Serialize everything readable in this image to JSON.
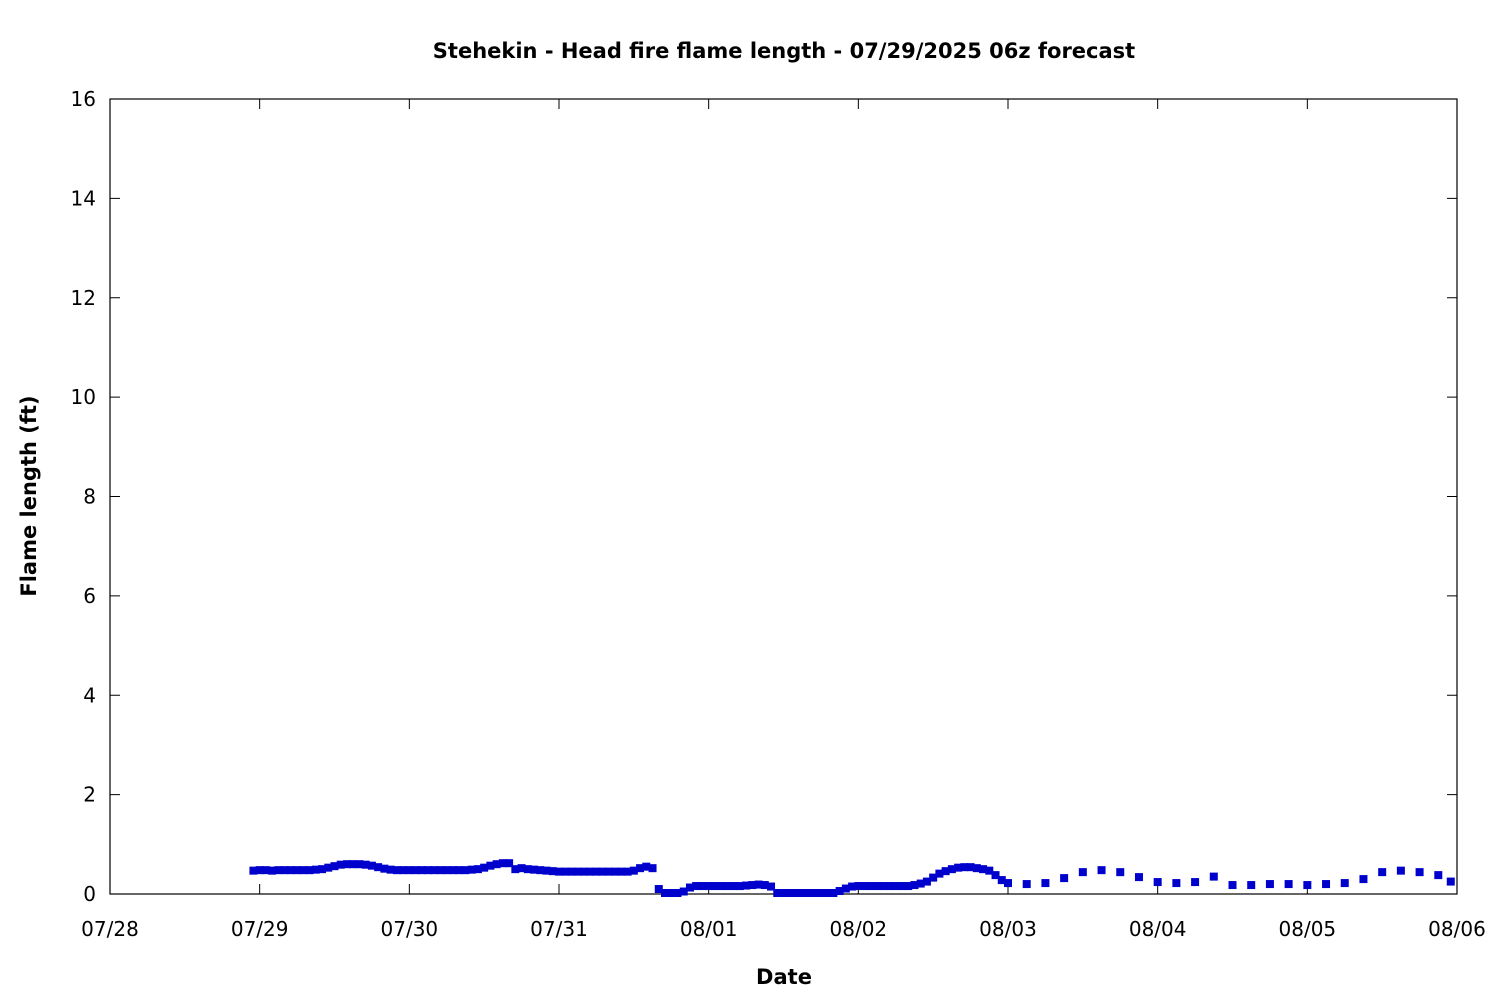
{
  "chart_data": {
    "type": "scatter",
    "title": "Stehekin - Head fire flame length - 07/29/2025 06z forecast",
    "xlabel": "Date",
    "ylabel": "Flame length (ft)",
    "ylim": [
      0,
      16
    ],
    "yticks": [
      "0",
      "2",
      "4",
      "6",
      "8",
      "10",
      "12",
      "14",
      "16"
    ],
    "xlim": [
      "07/28 00z",
      "08/06 00z"
    ],
    "xticks": [
      "07/28",
      "07/29",
      "07/30",
      "07/31",
      "08/01",
      "08/02",
      "08/03",
      "08/04",
      "08/05",
      "08/06"
    ],
    "grid": false,
    "legend": false,
    "marker": "square",
    "color": "#0000cc",
    "series": [
      {
        "x": [
          "07/28 23z",
          "07/29 00z",
          "07/29 01z",
          "07/29 02z",
          "07/29 03z",
          "07/29 04z",
          "07/29 05z",
          "07/29 06z",
          "07/29 07z",
          "07/29 08z",
          "07/29 09z",
          "07/29 10z",
          "07/29 11z",
          "07/29 12z",
          "07/29 13z",
          "07/29 14z",
          "07/29 15z",
          "07/29 16z",
          "07/29 17z",
          "07/29 18z",
          "07/29 19z",
          "07/29 20z",
          "07/29 21z",
          "07/29 22z",
          "07/29 23z",
          "07/30 00z",
          "07/30 01z",
          "07/30 02z",
          "07/30 03z",
          "07/30 04z",
          "07/30 05z",
          "07/30 06z",
          "07/30 07z",
          "07/30 08z",
          "07/30 09z",
          "07/30 10z",
          "07/30 11z",
          "07/30 12z",
          "07/30 13z",
          "07/30 14z",
          "07/30 15z",
          "07/30 16z",
          "07/30 17z",
          "07/30 18z",
          "07/30 19z",
          "07/30 20z",
          "07/30 21z",
          "07/30 22z",
          "07/30 23z",
          "07/31 00z",
          "07/31 01z",
          "07/31 02z",
          "07/31 03z",
          "07/31 04z",
          "07/31 05z",
          "07/31 06z",
          "07/31 07z",
          "07/31 08z",
          "07/31 09z",
          "07/31 10z",
          "07/31 11z",
          "07/31 12z",
          "07/31 13z",
          "07/31 14z",
          "07/31 15z",
          "07/31 16z",
          "07/31 17z",
          "07/31 18z",
          "07/31 19z",
          "07/31 20z",
          "07/31 21z",
          "07/31 22z",
          "07/31 23z",
          "08/01 00z",
          "08/01 01z",
          "08/01 02z",
          "08/01 03z",
          "08/01 04z",
          "08/01 05z",
          "08/01 06z",
          "08/01 07z",
          "08/01 08z",
          "08/01 09z",
          "08/01 10z",
          "08/01 11z",
          "08/01 12z",
          "08/01 13z",
          "08/01 14z",
          "08/01 15z",
          "08/01 16z",
          "08/01 17z",
          "08/01 18z",
          "08/01 19z",
          "08/01 20z",
          "08/01 21z",
          "08/01 22z",
          "08/01 23z",
          "08/02 00z",
          "08/02 01z",
          "08/02 02z",
          "08/02 03z",
          "08/02 04z",
          "08/02 05z",
          "08/02 06z",
          "08/02 07z",
          "08/02 08z",
          "08/02 09z",
          "08/02 10z",
          "08/02 11z",
          "08/02 12z",
          "08/02 13z",
          "08/02 14z",
          "08/02 15z",
          "08/02 16z",
          "08/02 17z",
          "08/02 18z",
          "08/02 19z",
          "08/02 20z",
          "08/02 21z",
          "08/02 22z",
          "08/02 23z",
          "08/03 00z",
          "08/03 03z",
          "08/03 06z",
          "08/03 09z",
          "08/03 12z",
          "08/03 15z",
          "08/03 18z",
          "08/03 21z",
          "08/04 00z",
          "08/04 03z",
          "08/04 06z",
          "08/04 09z",
          "08/04 12z",
          "08/04 15z",
          "08/04 18z",
          "08/04 21z",
          "08/05 00z",
          "08/05 03z",
          "08/05 06z",
          "08/05 09z",
          "08/05 12z",
          "08/05 15z",
          "08/05 18z",
          "08/05 21z",
          "08/05 23z"
        ],
        "y": [
          0.47,
          0.48,
          0.48,
          0.47,
          0.48,
          0.48,
          0.48,
          0.48,
          0.48,
          0.48,
          0.49,
          0.5,
          0.53,
          0.56,
          0.59,
          0.6,
          0.6,
          0.6,
          0.59,
          0.57,
          0.54,
          0.51,
          0.49,
          0.48,
          0.48,
          0.48,
          0.48,
          0.48,
          0.48,
          0.48,
          0.48,
          0.48,
          0.48,
          0.48,
          0.48,
          0.49,
          0.5,
          0.53,
          0.57,
          0.6,
          0.62,
          0.62,
          0.5,
          0.52,
          0.5,
          0.49,
          0.48,
          0.47,
          0.46,
          0.45,
          0.45,
          0.45,
          0.45,
          0.45,
          0.45,
          0.45,
          0.45,
          0.45,
          0.45,
          0.45,
          0.45,
          0.47,
          0.52,
          0.55,
          0.52,
          0.1,
          0.02,
          0.02,
          0.02,
          0.05,
          0.13,
          0.16,
          0.16,
          0.16,
          0.16,
          0.16,
          0.16,
          0.16,
          0.16,
          0.17,
          0.18,
          0.19,
          0.18,
          0.15,
          0.02,
          0.02,
          0.02,
          0.02,
          0.02,
          0.02,
          0.02,
          0.02,
          0.02,
          0.02,
          0.06,
          0.11,
          0.15,
          0.16,
          0.16,
          0.16,
          0.16,
          0.16,
          0.16,
          0.16,
          0.16,
          0.16,
          0.18,
          0.21,
          0.25,
          0.33,
          0.41,
          0.46,
          0.5,
          0.53,
          0.54,
          0.54,
          0.52,
          0.5,
          0.47,
          0.38,
          0.28,
          0.22,
          0.2,
          0.22,
          0.32,
          0.44,
          0.48,
          0.44,
          0.34,
          0.24,
          0.22,
          0.24,
          0.35,
          0.18,
          0.18,
          0.2,
          0.2,
          0.18,
          0.2,
          0.22,
          0.3,
          0.44,
          0.47,
          0.44,
          0.38,
          0.25
        ]
      }
    ]
  }
}
